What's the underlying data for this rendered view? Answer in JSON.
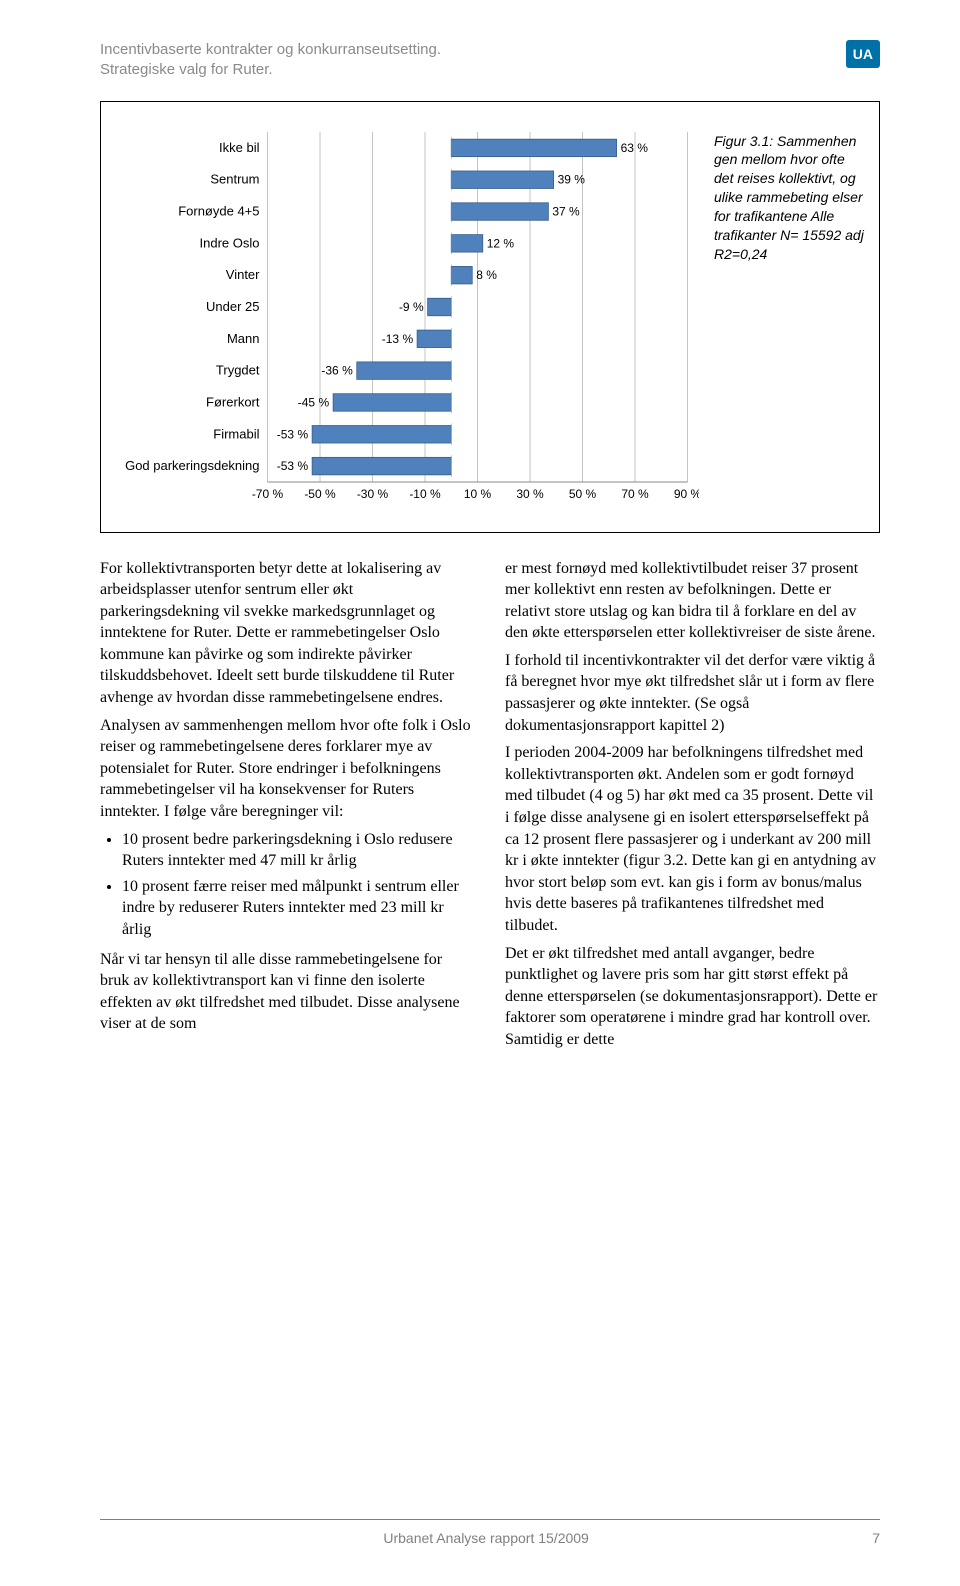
{
  "header": {
    "title_line1": "Incentivbaserte kontrakter og konkurranseutsetting.",
    "title_line2": "Strategiske valg for Ruter.",
    "badge": "UA"
  },
  "chart": {
    "type": "horizontal-bar",
    "bar_color": "#4f81bd",
    "bar_border": "#385d8a",
    "tick_color": "#888888",
    "categories": [
      "Ikke bil",
      "Sentrum",
      "Fornøyde 4+5",
      "Indre Oslo",
      "Vinter",
      "Under 25",
      "Mann",
      "Trygdet",
      "Førerkort",
      "Firmabil",
      "God parkeringsdekning"
    ],
    "values": [
      63,
      39,
      37,
      12,
      8,
      -9,
      -13,
      -36,
      -45,
      -53,
      -53
    ],
    "value_labels": [
      "63 %",
      "39 %",
      "37 %",
      "12 %",
      "8 %",
      "-9 %",
      "-13 %",
      "-36 %",
      "-45 %",
      "-53 %",
      "-53 %"
    ],
    "x_ticks": [
      -70,
      -50,
      -30,
      -10,
      10,
      30,
      50,
      70,
      90
    ],
    "x_tick_labels": [
      "-70 %",
      "-50 %",
      "-30 %",
      "-10 %",
      "10 %",
      "30 %",
      "50 %",
      "70 %",
      "90 %"
    ],
    "xlim": [
      -70,
      90
    ]
  },
  "caption": {
    "title": "Figur 3.1:",
    "text": "Sammenhen gen mellom hvor ofte det reises kollektivt, og ulike rammebeting elser for trafikantene Alle trafikanter N= 15592 adj R2=0,24"
  },
  "body": {
    "left": {
      "p1": "For kollektivtransporten betyr dette at lokalisering av arbeidsplasser utenfor sentrum eller økt parkeringsdekning vil svekke markedsgrunnlaget og inntektene for Ruter. Dette er rammebetingelser Oslo kommune kan påvirke og som indirekte påvirker tilskuddsbehovet. Ideelt sett burde tilskuddene til Ruter avhenge av hvordan disse ramme­betingelsene endres.",
      "p2": "Analysen av sammenhengen mellom hvor ofte folk i Oslo reiser og ramme­betingelsene deres forklarer mye av potensialet for Ruter. Store endringer i befolkningens rammebetingelser vil  ha konsekvenser for Ruters inntekter. I følge våre beregninger vil:",
      "li1": "10 prosent bedre parkeringsdekning i Oslo redusere Ruters inntekter med 47 mill kr årlig",
      "li2": "10 prosent færre reiser med målpunkt i sentrum eller indre by reduserer Ruters inntekter med 23 mill kr årlig",
      "p3": "Når vi tar hensyn til alle disse rammebetingelsene for bruk av kollektivtransport kan vi finne den isolerte effekten av økt tilfredshet med tilbudet. Disse analysene viser at de som"
    },
    "right": {
      "p1": "er mest fornøyd med kollektivtilbudet reiser 37 prosent mer kollektivt enn resten av befolkningen. Dette er relativt store utslag og kan bidra til å forklare en del av den økte etterspørselen etter kollektivreiser de siste årene.",
      "p2": "I forhold til incentivkontrakter vil det derfor være viktig å få beregnet hvor mye økt tilfredshet slår ut i form av flere passasjerer og økte inntekter. (Se også dokumentasjonsrapport kapittel 2)",
      "p3": "I perioden 2004-2009 har befolkningens tilfredshet med kollektivtransporten økt. Andelen som er godt fornøyd med tilbudet (4 og 5) har økt med ca 35 prosent.  Dette vil i følge disse analysene gi en isolert etterspørselseffekt på ca 12 prosent flere passasjerer og i underkant av 200 mill kr i økte inntekter (figur 3.2. Dette kan gi en antydning av hvor stort beløp som evt. kan gis i form av bonus/malus hvis dette baseres på trafikantenes tilfredshet med tilbudet.",
      "p4": "Det er økt tilfredshet med antall avganger, bedre punktlighet og lavere pris som har gitt størst effekt på denne etterspørselen (se dokumentasjonsrapport). Dette er faktorer som operatørene i mindre grad har kontroll over. Samtidig er dette"
    }
  },
  "footer": {
    "center": "Urbanet Analyse rapport 15/2009",
    "page": "7"
  }
}
